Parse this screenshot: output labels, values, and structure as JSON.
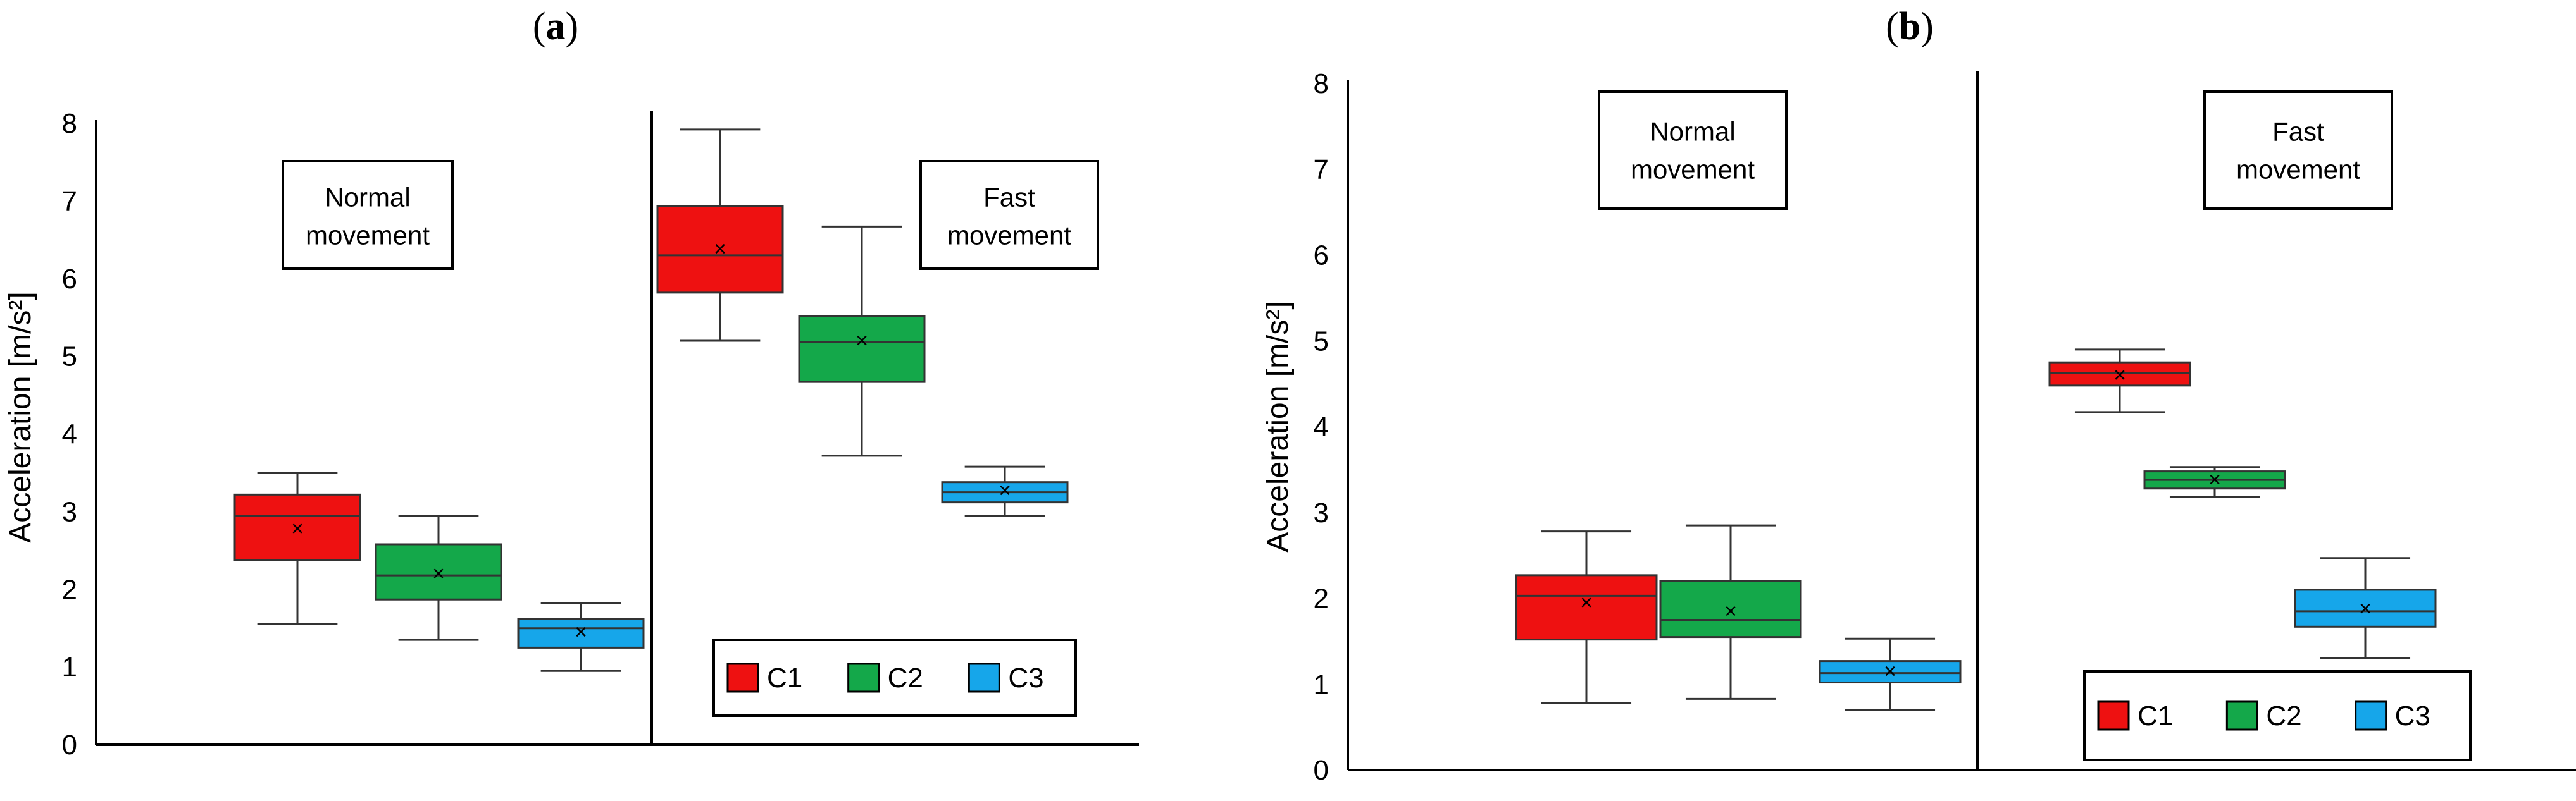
{
  "chart_data": [
    {
      "type": "box",
      "panel_label": "a",
      "ylabel": "Acceleration [m/s²]",
      "ylim": [
        0,
        8
      ],
      "yticks": [
        "0",
        "1",
        "2",
        "3",
        "4",
        "5",
        "6",
        "7",
        "8"
      ],
      "groups": [
        {
          "label": "Normal movement",
          "boxes": [
            {
              "series": "C1",
              "whisker_low": 1.55,
              "q1": 2.38,
              "median": 2.95,
              "q3": 3.22,
              "whisker_high": 3.5,
              "mean": 2.78
            },
            {
              "series": "C2",
              "whisker_low": 1.35,
              "q1": 1.87,
              "median": 2.18,
              "q3": 2.58,
              "whisker_high": 2.95,
              "mean": 2.2
            },
            {
              "series": "C3",
              "whisker_low": 0.95,
              "q1": 1.25,
              "median": 1.5,
              "q3": 1.62,
              "whisker_high": 1.82,
              "mean": 1.45
            }
          ]
        },
        {
          "label": "Fast movement",
          "boxes": [
            {
              "series": "C1",
              "whisker_low": 5.2,
              "q1": 5.82,
              "median": 6.3,
              "q3": 6.93,
              "whisker_high": 7.92,
              "mean": 6.38
            },
            {
              "series": "C2",
              "whisker_low": 3.72,
              "q1": 4.67,
              "median": 5.18,
              "q3": 5.52,
              "whisker_high": 6.67,
              "mean": 5.2
            },
            {
              "series": "C3",
              "whisker_low": 2.95,
              "q1": 3.12,
              "median": 3.25,
              "q3": 3.38,
              "whisker_high": 3.58,
              "mean": 3.27
            }
          ]
        }
      ],
      "legend": {
        "position": "bottom-right",
        "entries": [
          "C1",
          "C2",
          "C3"
        ]
      },
      "grid": false
    },
    {
      "type": "box",
      "panel_label": "b",
      "ylabel": "Acceleration [m/s²]",
      "ylim": [
        0,
        8
      ],
      "yticks": [
        "0",
        "1",
        "2",
        "3",
        "4",
        "5",
        "6",
        "7",
        "8"
      ],
      "groups": [
        {
          "label": "Normal movement",
          "boxes": [
            {
              "series": "C1",
              "whisker_low": 0.78,
              "q1": 1.52,
              "median": 2.03,
              "q3": 2.27,
              "whisker_high": 2.78,
              "mean": 1.95
            },
            {
              "series": "C2",
              "whisker_low": 0.83,
              "q1": 1.55,
              "median": 1.75,
              "q3": 2.2,
              "whisker_high": 2.85,
              "mean": 1.85
            },
            {
              "series": "C3",
              "whisker_low": 0.7,
              "q1": 1.02,
              "median": 1.13,
              "q3": 1.27,
              "whisker_high": 1.53,
              "mean": 1.15
            }
          ]
        },
        {
          "label": "Fast movement",
          "boxes": [
            {
              "series": "C1",
              "whisker_low": 4.17,
              "q1": 4.48,
              "median": 4.63,
              "q3": 4.75,
              "whisker_high": 4.9,
              "mean": 4.6
            },
            {
              "series": "C2",
              "whisker_low": 3.18,
              "q1": 3.28,
              "median": 3.38,
              "q3": 3.48,
              "whisker_high": 3.53,
              "mean": 3.38
            },
            {
              "series": "C3",
              "whisker_low": 1.3,
              "q1": 1.67,
              "median": 1.85,
              "q3": 2.1,
              "whisker_high": 2.47,
              "mean": 1.88
            }
          ]
        }
      ],
      "legend": {
        "position": "bottom-right",
        "entries": [
          "C1",
          "C2",
          "C3"
        ]
      },
      "grid": false
    }
  ],
  "colors": {
    "C1": "#ee1111",
    "C2": "#14a84a",
    "C3": "#16a6ea"
  },
  "mean_marker": "×"
}
